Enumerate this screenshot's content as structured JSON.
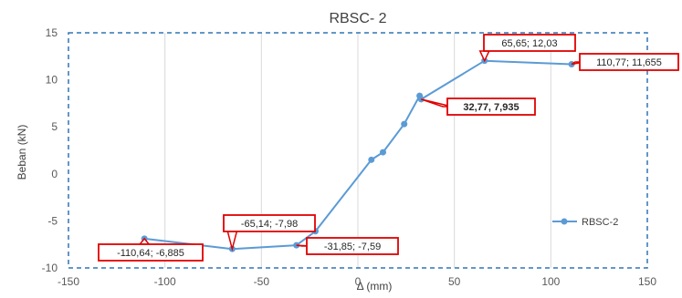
{
  "chart_data": {
    "type": "scatter",
    "title": "RBSC- 2",
    "xlabel": "Δ (mm)",
    "ylabel": "Beban (kN)",
    "xlim": [
      -150,
      150
    ],
    "ylim": [
      -10,
      15
    ],
    "xticks": [
      -150,
      -100,
      -50,
      0,
      50,
      100,
      150
    ],
    "yticks": [
      -10,
      -5,
      0,
      5,
      10,
      15
    ],
    "grid": "vertical",
    "legend_position": "right",
    "series": [
      {
        "name": "RBSC-2",
        "color": "#5b9bd5",
        "x": [
          -110.64,
          -65.14,
          -31.85,
          -22.0,
          7.0,
          13.0,
          24.0,
          32.0,
          32.77,
          65.65,
          110.77
        ],
        "y": [
          -6.885,
          -7.98,
          -7.59,
          -6.1,
          1.5,
          2.3,
          5.3,
          8.3,
          7.935,
          12.03,
          11.655
        ]
      }
    ],
    "annotations": [
      {
        "text": "-110,64; -6,885",
        "x": -110.64,
        "y": -6.885
      },
      {
        "text": "-65,14; -7,98",
        "x": -65.14,
        "y": -7.98
      },
      {
        "text": "-31,85; -7,59",
        "x": -31.85,
        "y": -7.59
      },
      {
        "text": "32,77, 7,935",
        "x": 32.77,
        "y": 7.935
      },
      {
        "text": "65,65; 12,03",
        "x": 65.65,
        "y": 12.03
      },
      {
        "text": "110,77; 11,655",
        "x": 110.77,
        "y": 11.655
      }
    ]
  }
}
